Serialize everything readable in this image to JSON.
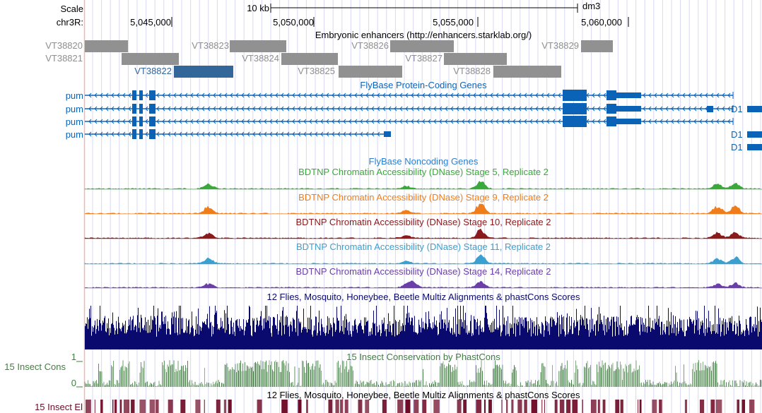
{
  "ruler": {
    "scale_label": "Scale",
    "scale_value": "10 kb",
    "assembly": "dm3",
    "chrom_label": "chr3R:",
    "ticks": [
      "5,045,000",
      "5,050,000",
      "5,055,000",
      "5,060,000"
    ]
  },
  "enhancers": {
    "title": "Embryonic enhancers (http://enhancers.starklab.org/)",
    "items": [
      "VT38820",
      "VT38821",
      "VT38822",
      "VT38823",
      "VT38824",
      "VT38825",
      "VT38826",
      "VT38827",
      "VT38828",
      "VT38829"
    ],
    "highlight": "VT38822",
    "colors": {
      "default": "#919191",
      "highlight": "#336699"
    }
  },
  "genes": {
    "title": "FlyBase Protein-Coding Genes",
    "labels": [
      "pum",
      "pum",
      "pum",
      "pum"
    ],
    "right_labels": [
      "D1",
      "D1",
      "D1"
    ],
    "color": "#0b63b8"
  },
  "noncoding": {
    "title": "FlyBase Noncoding Genes"
  },
  "dnase": [
    {
      "title": "BDTNP Chromatin Accessibility (DNase) Stage 5, Replicate 2",
      "color": "#3aa83a"
    },
    {
      "title": "BDTNP Chromatin Accessibility (DNase) Stage 9, Replicate 2",
      "color": "#f07d1c"
    },
    {
      "title": "BDTNP Chromatin Accessibility (DNase) Stage 10, Replicate 2",
      "color": "#8b1a1a"
    },
    {
      "title": "BDTNP Chromatin Accessibility (DNase) Stage 11, Replicate 2",
      "color": "#3aa0d0"
    },
    {
      "title": "BDTNP Chromatin Accessibility (DNase) Stage 14, Replicate 2",
      "color": "#6a3fa8"
    }
  ],
  "multiz": {
    "title": "12 Flies, Mosquito, Honeybee, Beetle Multiz Alignments & phastCons Scores",
    "color": "#0a0a6e"
  },
  "phastcons": {
    "title": "15 Insect Conservation by PhastCons",
    "label": "15 Insect Cons",
    "ymax": "1",
    "ymin": "0",
    "color": "#3f7f3f"
  },
  "elements": {
    "title": "12 Flies, Mosquito, Honeybee, Beetle Multiz Alignments & phastCons Scores",
    "label": "15 Insect El",
    "color": "#6e0a26"
  }
}
